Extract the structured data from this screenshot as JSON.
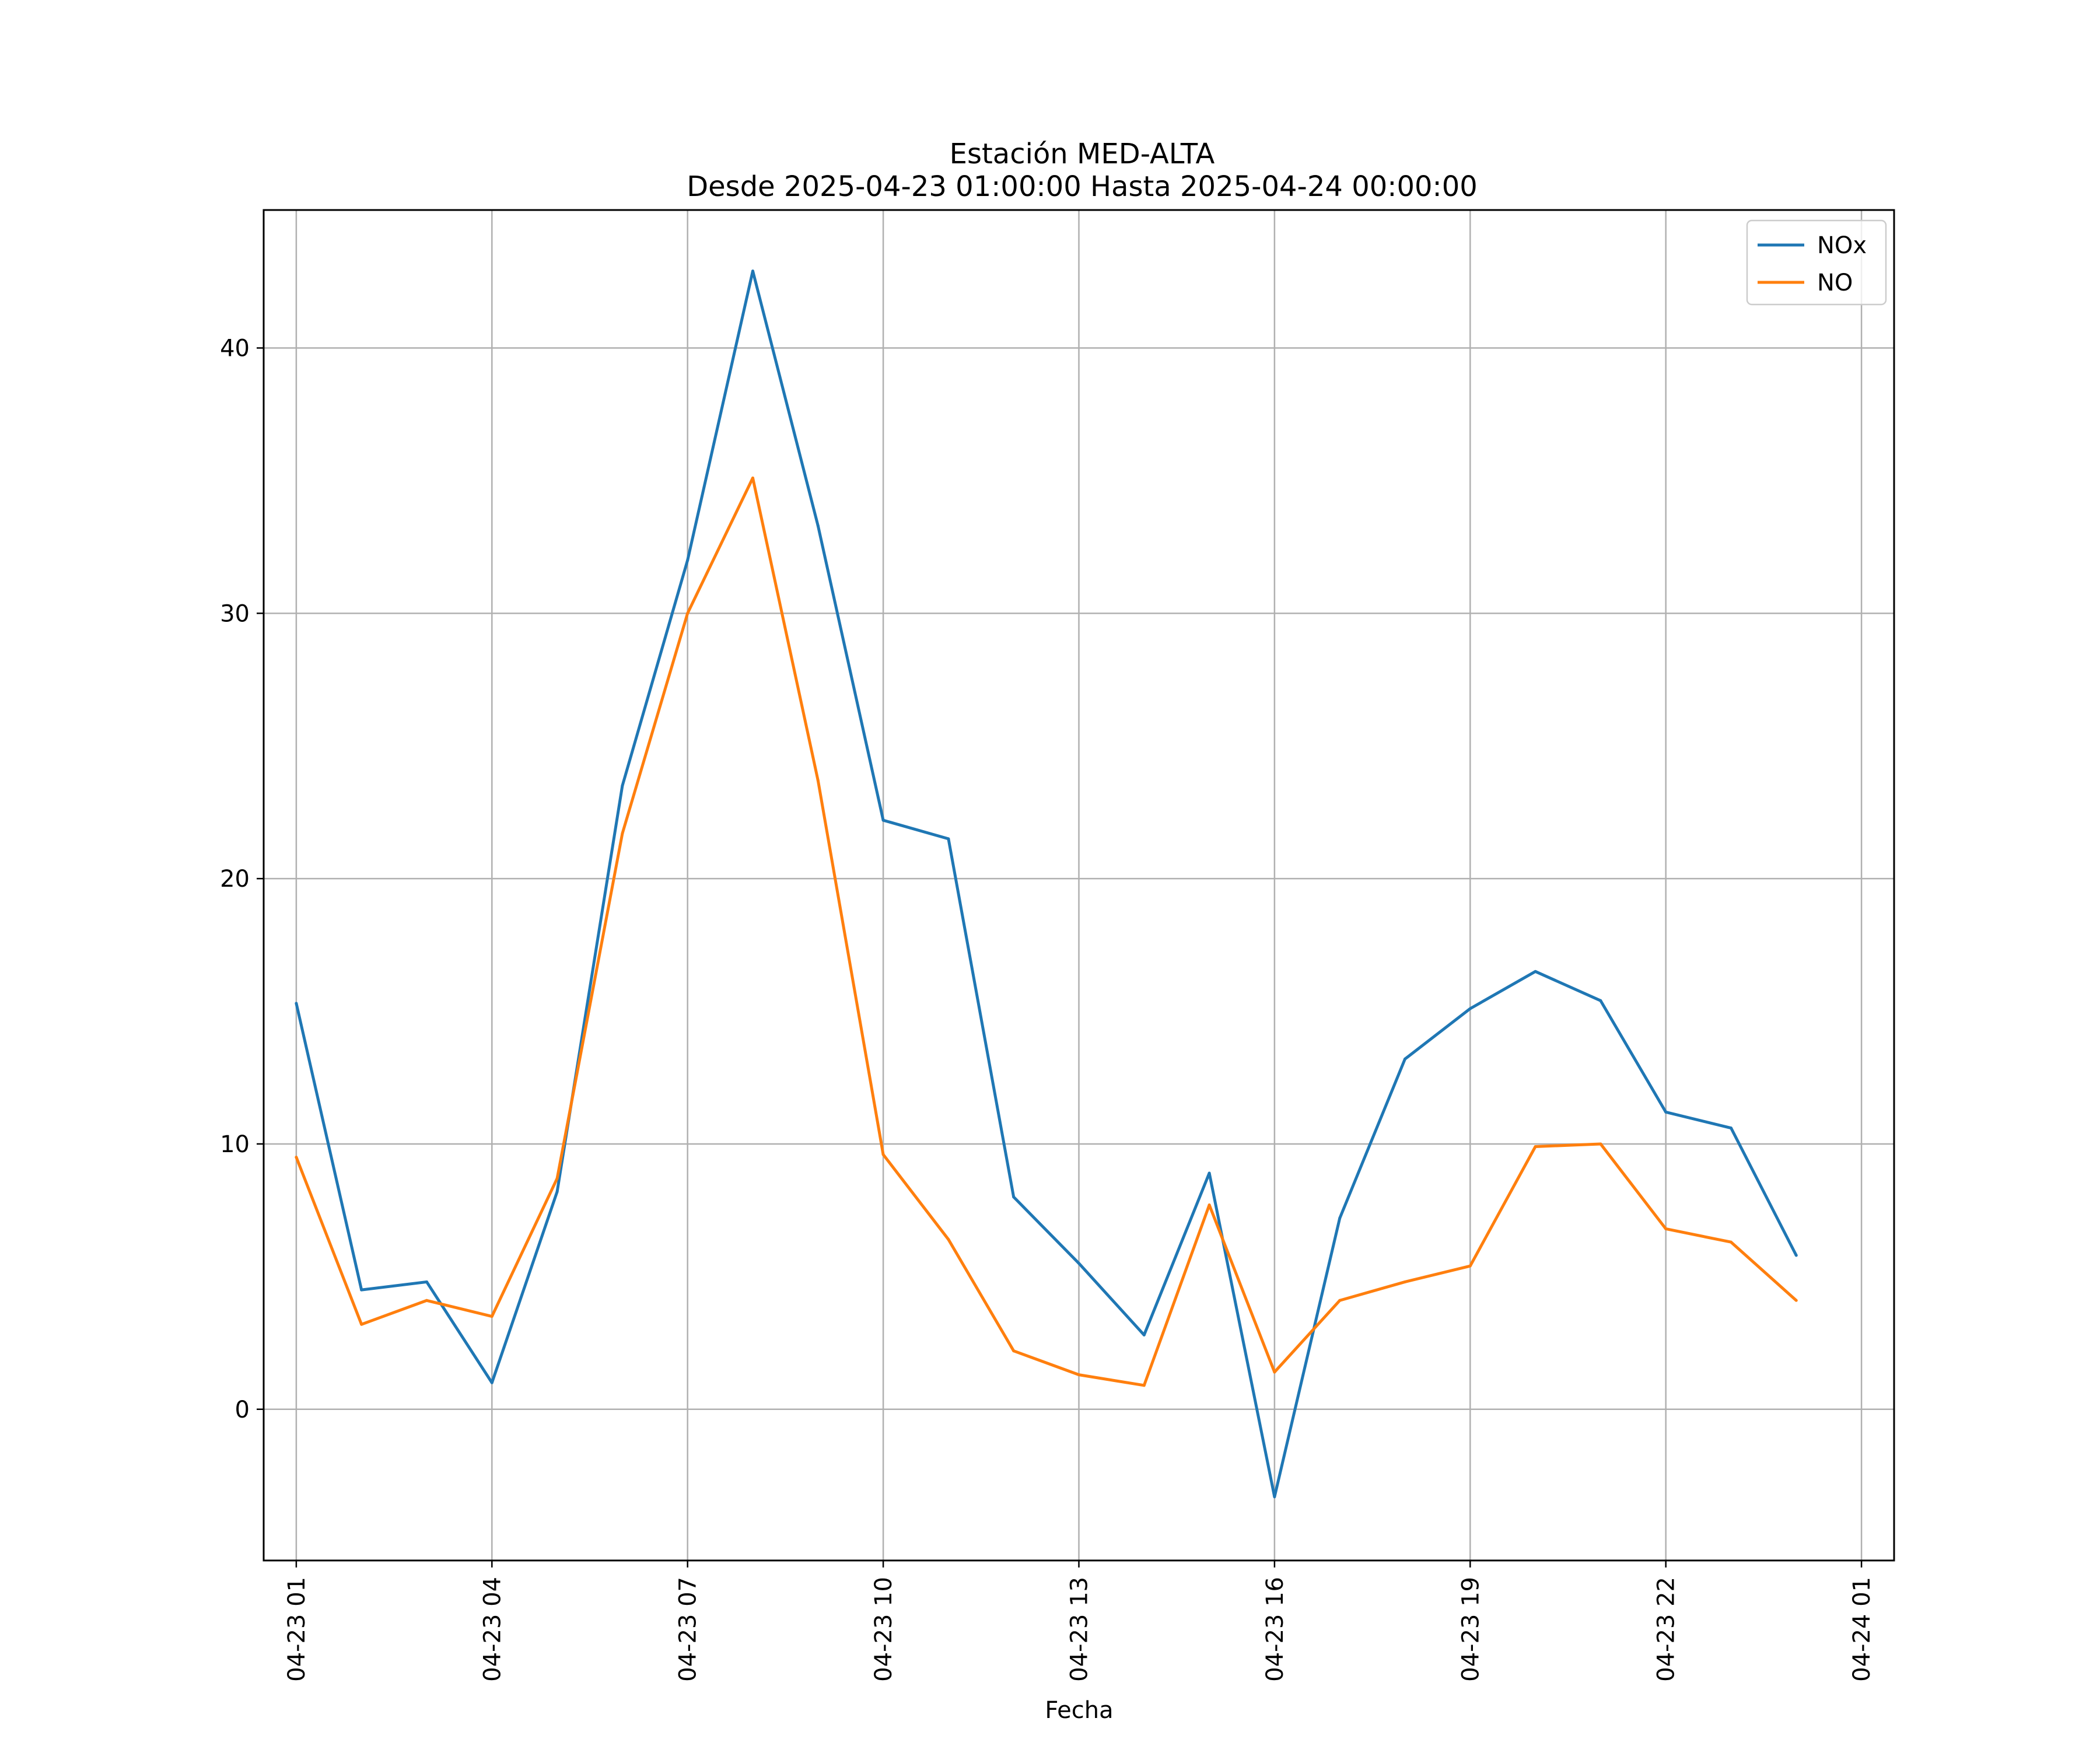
{
  "chart_data": {
    "type": "line",
    "title": "Estación MED-ALTA",
    "subtitle": "Desde 2025-04-23 01:00:00 Hasta 2025-04-24 00:00:00",
    "xlabel": "Fecha",
    "ylabel": "",
    "x": [
      "04-23 01",
      "04-23 02",
      "04-23 03",
      "04-23 04",
      "04-23 05",
      "04-23 06",
      "04-23 07",
      "04-23 08",
      "04-23 09",
      "04-23 10",
      "04-23 11",
      "04-23 12",
      "04-23 13",
      "04-23 14",
      "04-23 15",
      "04-23 16",
      "04-23 17",
      "04-23 18",
      "04-23 19",
      "04-23 20",
      "04-23 21",
      "04-23 22",
      "04-23 23",
      "04-24 00"
    ],
    "xticks": [
      "04-23 01",
      "04-23 04",
      "04-23 07",
      "04-23 10",
      "04-23 13",
      "04-23 16",
      "04-23 19",
      "04-23 22",
      "04-24 01"
    ],
    "xlim_hours": [
      -0.5,
      24.5
    ],
    "ylim": [
      -5.7,
      45.2
    ],
    "yticks": [
      0,
      10,
      20,
      30,
      40
    ],
    "grid": true,
    "legend_position": "top-right",
    "series": [
      {
        "name": "NOx",
        "color": "#1f77b4",
        "values": [
          15.3,
          4.5,
          4.8,
          1.0,
          8.2,
          23.5,
          32.0,
          42.9,
          33.3,
          22.2,
          21.5,
          8.0,
          5.5,
          2.8,
          8.9,
          -3.3,
          7.2,
          13.2,
          15.1,
          16.5,
          15.4,
          11.2,
          10.6,
          5.8
        ]
      },
      {
        "name": "NO",
        "color": "#ff7f0e",
        "values": [
          9.5,
          3.2,
          4.1,
          3.5,
          8.7,
          21.7,
          30.0,
          35.1,
          23.7,
          9.6,
          6.4,
          2.2,
          1.3,
          0.9,
          7.7,
          1.4,
          4.1,
          4.8,
          5.4,
          9.9,
          10.0,
          6.8,
          6.3,
          4.1
        ]
      }
    ]
  }
}
